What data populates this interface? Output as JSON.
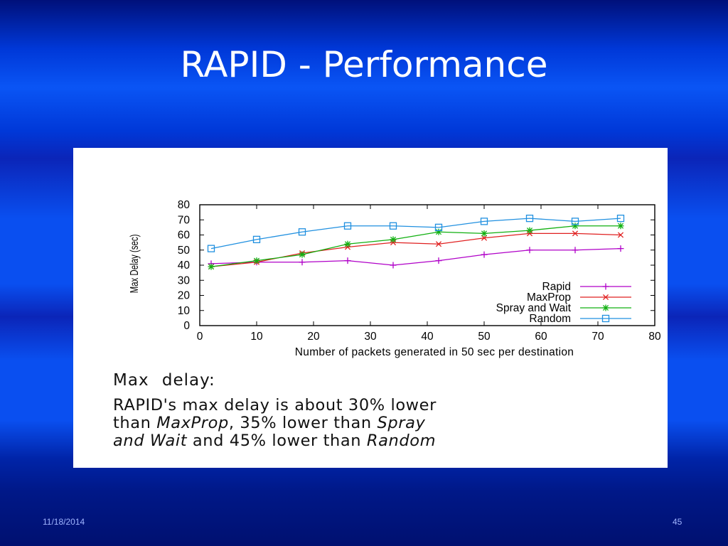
{
  "slide": {
    "title": "RAPID - Performance",
    "date": "11/18/2014",
    "page_number": "45"
  },
  "caption": {
    "heading": "Max   delay:",
    "line1": "RAPID's max delay is about 30% lower",
    "line2_a": "than ",
    "line2_b": "MaxProp",
    "line2_c": ", 35% lower than ",
    "line2_d": "Spray",
    "line3_a": "and Wait",
    "line3_b": " and 45% lower than ",
    "line3_c": "Random"
  },
  "chart_data": {
    "type": "line",
    "xlabel": "Number of packets generated in 50 sec per destination",
    "ylabel": "Max Delay (sec)",
    "xlim": [
      0,
      80
    ],
    "ylim": [
      0,
      80
    ],
    "xticks": [
      0,
      10,
      20,
      30,
      40,
      50,
      60,
      70,
      80
    ],
    "yticks": [
      0,
      10,
      20,
      30,
      40,
      50,
      60,
      70,
      80
    ],
    "legend_position": "bottom-right",
    "x": [
      2,
      10,
      18,
      26,
      34,
      42,
      50,
      58,
      66,
      74
    ],
    "series": [
      {
        "name": "Rapid",
        "color": "#b000c8",
        "marker": "plus",
        "values": [
          41,
          42,
          42,
          43,
          40,
          43,
          47,
          50,
          50,
          51
        ]
      },
      {
        "name": "MaxProp",
        "color": "#e02020",
        "marker": "x",
        "values": [
          39,
          42,
          48,
          52,
          55,
          54,
          58,
          61,
          61,
          60
        ]
      },
      {
        "name": "Spray and Wait",
        "color": "#10b010",
        "marker": "star",
        "values": [
          39,
          43,
          47,
          54,
          57,
          62,
          61,
          63,
          66,
          66
        ]
      },
      {
        "name": "Random",
        "color": "#2090e0",
        "marker": "square",
        "values": [
          51,
          57,
          62,
          66,
          66,
          65,
          69,
          71,
          69,
          71
        ]
      }
    ]
  }
}
